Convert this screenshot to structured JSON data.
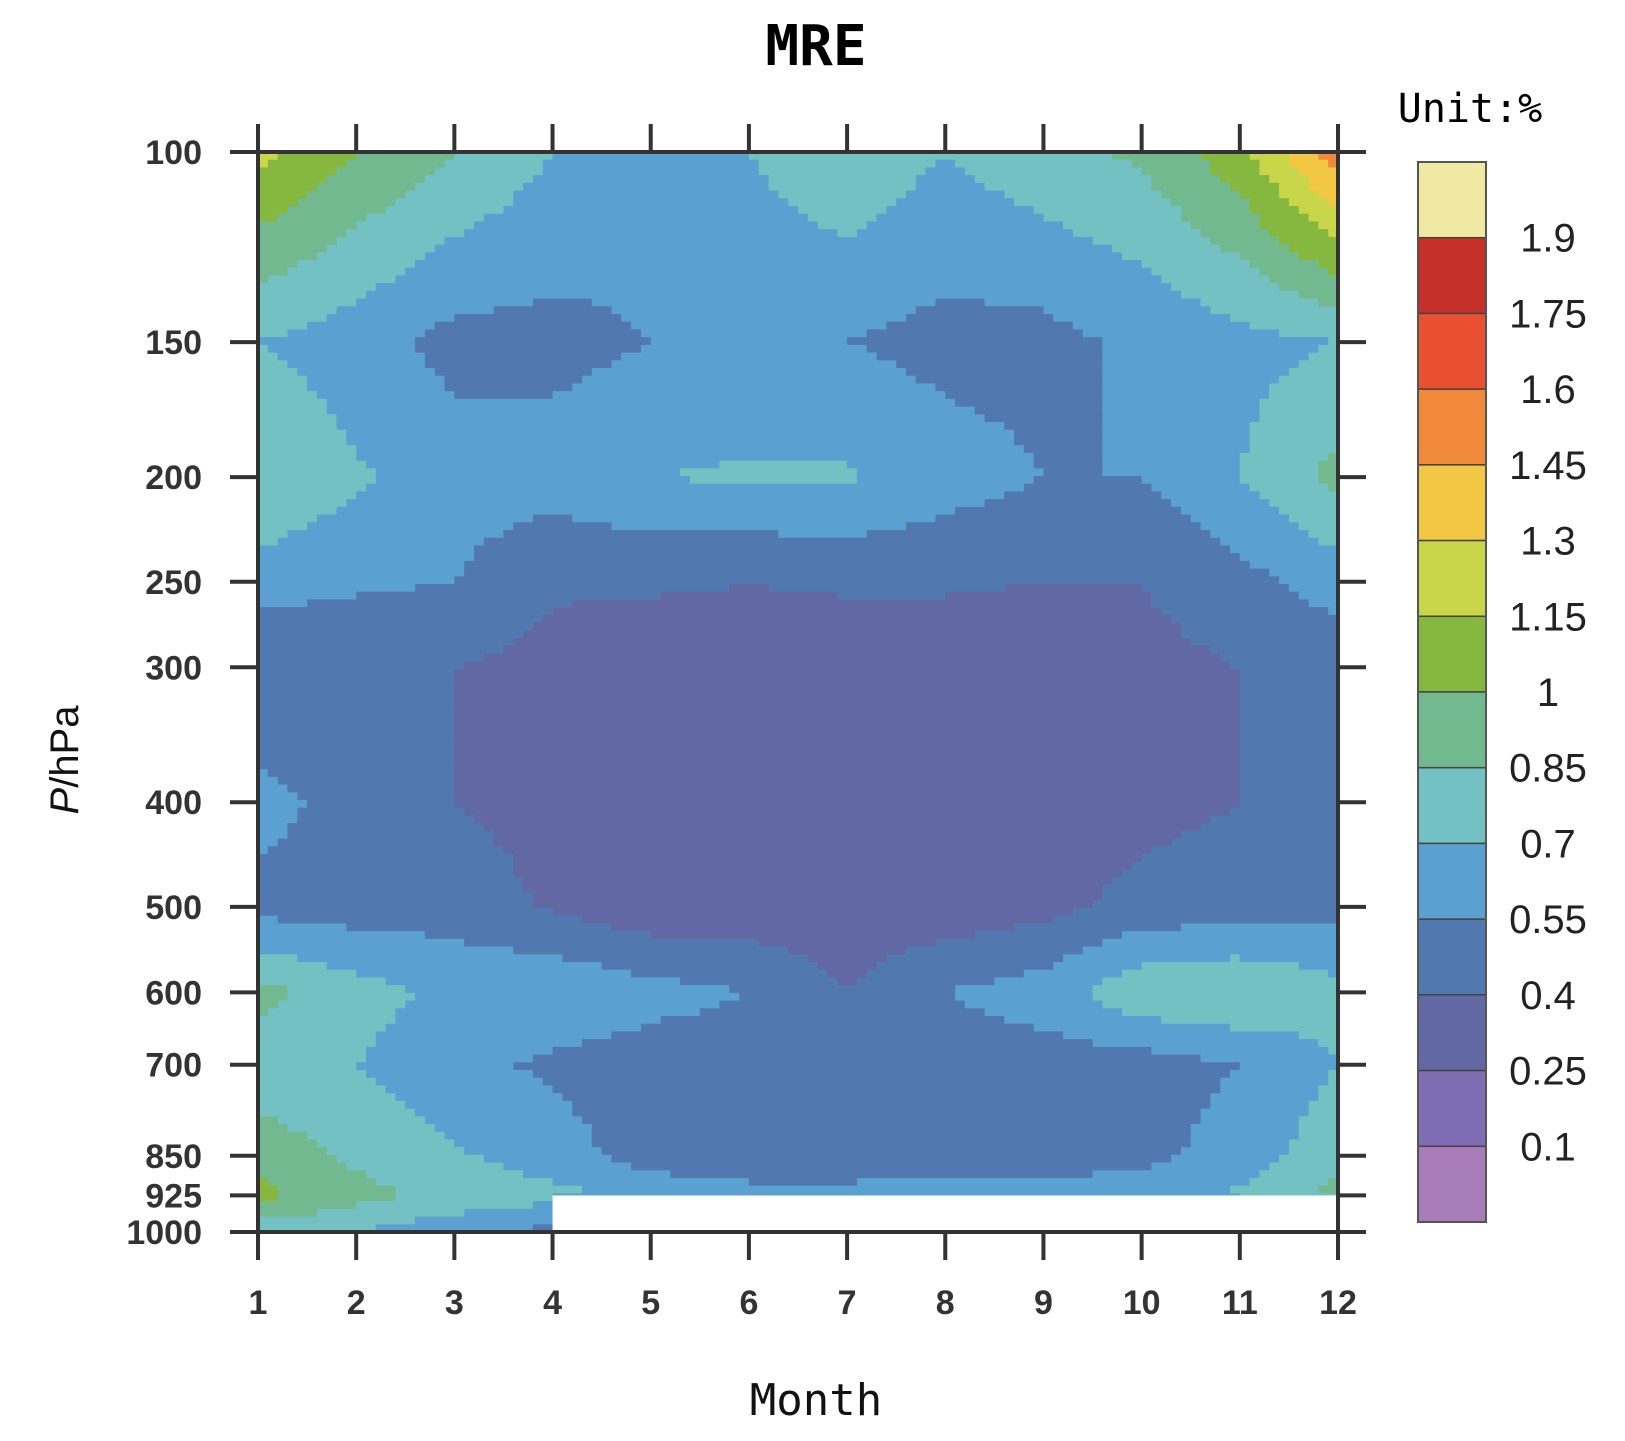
{
  "chart_data": {
    "type": "heatmap",
    "title": "MRE",
    "unit_label": "Unit:%",
    "xlabel": "Month",
    "ylabel_italic": "P",
    "ylabel_rest": "/hPa",
    "x_ticks": [
      "1",
      "2",
      "3",
      "4",
      "5",
      "6",
      "7",
      "8",
      "9",
      "10",
      "11",
      "12"
    ],
    "y_levels": [
      100,
      150,
      200,
      250,
      300,
      400,
      500,
      600,
      700,
      850,
      925,
      1000
    ],
    "y_tick_labels": [
      "100",
      "150",
      "200",
      "250",
      "300",
      "400",
      "500",
      "600",
      "700",
      "850",
      "925",
      "1000"
    ],
    "colorbar": {
      "labels": [
        "1.9",
        "1.75",
        "1.6",
        "1.45",
        "1.3",
        "1.15",
        "1",
        "0.85",
        "0.7",
        "0.55",
        "0.4",
        "0.25",
        "0.1"
      ],
      "colors": [
        "#efe9a3",
        "#c6302b",
        "#e8502f",
        "#f08a3a",
        "#f2c744",
        "#c9d64a",
        "#86b83f",
        "#72b98f",
        "#74c1c3",
        "#5aa0d0",
        "#5179b0",
        "#6268a4",
        "#7e6db3",
        "#a87cb8"
      ]
    },
    "bin_edges": [
      0.1,
      0.25,
      0.4,
      0.55,
      0.7,
      0.85,
      1.0,
      1.15,
      1.3,
      1.45,
      1.6,
      1.75,
      1.9
    ],
    "missing_region": {
      "months": [
        4,
        12
      ],
      "levels": [
        925,
        1000
      ]
    },
    "values": [
      [
        1.2,
        1.0,
        0.86,
        0.7,
        0.62,
        0.7,
        0.82,
        0.7,
        0.8,
        0.88,
        1.1,
        1.55
      ],
      [
        0.7,
        0.62,
        0.5,
        0.5,
        0.55,
        0.58,
        0.55,
        0.5,
        0.5,
        0.58,
        0.65,
        0.7
      ],
      [
        0.86,
        0.72,
        0.62,
        0.62,
        0.7,
        0.72,
        0.72,
        0.62,
        0.55,
        0.55,
        0.7,
        0.9
      ],
      [
        0.62,
        0.58,
        0.55,
        0.42,
        0.42,
        0.4,
        0.42,
        0.42,
        0.4,
        0.4,
        0.5,
        0.62
      ],
      [
        0.4,
        0.4,
        0.4,
        0.35,
        0.3,
        0.35,
        0.3,
        0.3,
        0.3,
        0.35,
        0.4,
        0.45
      ],
      [
        0.6,
        0.5,
        0.4,
        0.35,
        0.3,
        0.28,
        0.3,
        0.3,
        0.3,
        0.35,
        0.4,
        0.55
      ],
      [
        0.5,
        0.48,
        0.48,
        0.38,
        0.3,
        0.3,
        0.3,
        0.3,
        0.35,
        0.45,
        0.48,
        0.5
      ],
      [
        0.9,
        0.76,
        0.66,
        0.68,
        0.6,
        0.55,
        0.4,
        0.55,
        0.62,
        0.82,
        0.85,
        0.75
      ],
      [
        0.74,
        0.7,
        0.6,
        0.52,
        0.48,
        0.48,
        0.48,
        0.48,
        0.48,
        0.48,
        0.55,
        0.7
      ],
      [
        0.95,
        0.82,
        0.72,
        0.62,
        0.48,
        0.45,
        0.45,
        0.45,
        0.45,
        0.5,
        0.62,
        0.8
      ],
      [
        1.05,
        0.9,
        0.8,
        0.75,
        0.65,
        0.6,
        0.6,
        0.62,
        0.62,
        0.65,
        0.72,
        0.9
      ],
      [
        0.75,
        0.7,
        0.6,
        0.5,
        null,
        null,
        null,
        null,
        null,
        null,
        null,
        null
      ]
    ]
  }
}
